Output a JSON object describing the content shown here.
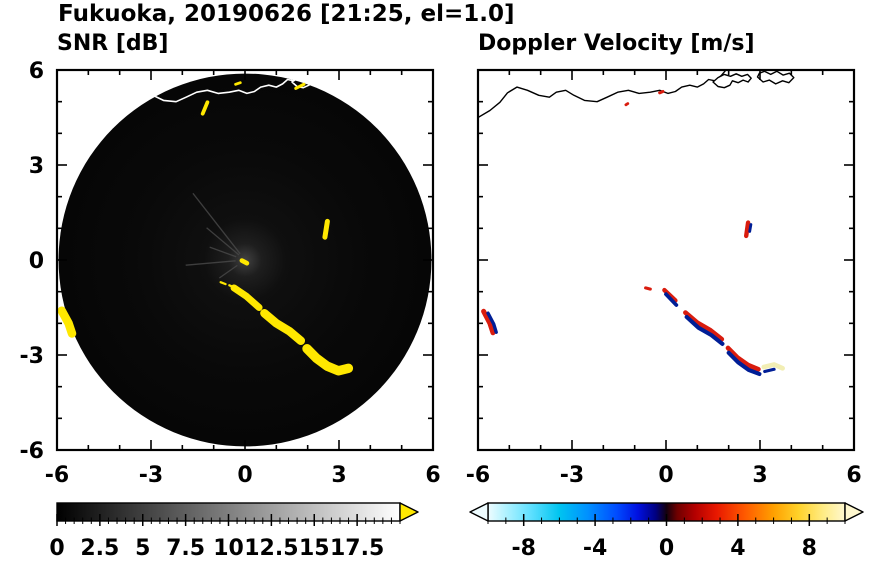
{
  "figure": {
    "title": "Fukuoka, 20190626 [21:25, el=1.0]",
    "background": "#ffffff"
  },
  "coastline": {
    "main": [
      [
        -6.0,
        4.5
      ],
      [
        -5.62,
        4.72
      ],
      [
        -5.3,
        4.98
      ],
      [
        -5.06,
        5.28
      ],
      [
        -4.76,
        5.46
      ],
      [
        -4.42,
        5.36
      ],
      [
        -4.06,
        5.2
      ],
      [
        -3.72,
        5.14
      ],
      [
        -3.5,
        5.3
      ],
      [
        -3.2,
        5.36
      ],
      [
        -2.94,
        5.2
      ],
      [
        -2.6,
        5.04
      ],
      [
        -2.2,
        5.0
      ],
      [
        -1.88,
        5.14
      ],
      [
        -1.54,
        5.3
      ],
      [
        -1.2,
        5.36
      ],
      [
        -0.86,
        5.26
      ],
      [
        -0.5,
        5.3
      ],
      [
        -0.2,
        5.36
      ],
      [
        0.06,
        5.26
      ],
      [
        0.3,
        5.32
      ],
      [
        0.5,
        5.46
      ],
      [
        0.76,
        5.52
      ],
      [
        1.0,
        5.46
      ],
      [
        1.2,
        5.56
      ],
      [
        1.36,
        5.7
      ],
      [
        1.56,
        5.66
      ],
      [
        1.76,
        5.82
      ],
      [
        1.9,
        5.98
      ]
    ],
    "islands": [
      [
        [
          1.5,
          5.62
        ],
        [
          1.66,
          5.48
        ],
        [
          1.86,
          5.44
        ],
        [
          2.04,
          5.52
        ],
        [
          2.12,
          5.66
        ],
        [
          2.3,
          5.6
        ],
        [
          2.46,
          5.68
        ],
        [
          2.62,
          5.62
        ],
        [
          2.72,
          5.74
        ],
        [
          2.6,
          5.86
        ],
        [
          2.42,
          5.8
        ],
        [
          2.24,
          5.88
        ],
        [
          2.06,
          5.8
        ],
        [
          1.86,
          5.86
        ],
        [
          1.66,
          5.76
        ],
        [
          1.5,
          5.62
        ]
      ],
      [
        [
          2.92,
          5.78
        ],
        [
          3.1,
          5.62
        ],
        [
          3.3,
          5.68
        ],
        [
          3.5,
          5.56
        ],
        [
          3.72,
          5.66
        ],
        [
          3.92,
          5.6
        ],
        [
          4.08,
          5.76
        ],
        [
          3.94,
          5.9
        ],
        [
          3.74,
          5.84
        ],
        [
          3.54,
          5.96
        ],
        [
          3.34,
          5.86
        ],
        [
          3.14,
          5.96
        ],
        [
          2.98,
          5.9
        ],
        [
          2.92,
          5.78
        ]
      ]
    ]
  },
  "chart_data": [
    {
      "type": "heatmap",
      "title": "SNR [dB]",
      "xlim": [
        -6,
        6
      ],
      "ylim": [
        -6,
        6
      ],
      "xticks": [
        -6,
        -3,
        0,
        3,
        6
      ],
      "yticks": [
        -6,
        -3,
        0,
        3,
        6
      ],
      "minor_tick_step": 1,
      "show_y_labels": true,
      "radar_disk": {
        "cx": 0,
        "cy": 0,
        "r": 5.95,
        "color": "#070707"
      },
      "spokes": [
        {
          "angle": 128,
          "r1": 0.25,
          "r2": 2.7
        },
        {
          "angle": 140,
          "r1": 0.25,
          "r2": 1.6
        },
        {
          "angle": 160,
          "r1": 0.3,
          "r2": 1.2
        },
        {
          "angle": 185,
          "r1": 0.3,
          "r2": 1.9
        },
        {
          "angle": 215,
          "r1": 0.3,
          "r2": 1.0
        }
      ],
      "coastline_color": "#ffffff",
      "island_fill": "none",
      "echo_color": "#ffe800",
      "echoes": [
        {
          "pts": [
            [
              -0.35,
              -0.88
            ],
            [
              0.05,
              -1.15
            ],
            [
              0.45,
              -1.5
            ]
          ],
          "w": 0.22
        },
        {
          "pts": [
            [
              0.62,
              -1.68
            ],
            [
              1.0,
              -2.0
            ],
            [
              1.42,
              -2.25
            ],
            [
              1.78,
              -2.55
            ]
          ],
          "w": 0.27
        },
        {
          "pts": [
            [
              1.98,
              -2.8
            ],
            [
              2.28,
              -3.1
            ],
            [
              2.62,
              -3.35
            ],
            [
              2.98,
              -3.5
            ],
            [
              3.3,
              -3.42
            ]
          ],
          "w": 0.3
        },
        {
          "pts": [
            [
              -5.85,
              -1.6
            ],
            [
              -5.63,
              -2.0
            ],
            [
              -5.52,
              -2.32
            ]
          ],
          "w": 0.27
        },
        {
          "pts": [
            [
              2.55,
              0.72
            ],
            [
              2.63,
              1.22
            ]
          ],
          "w": 0.16
        },
        {
          "pts": [
            [
              -0.1,
              -0.02
            ],
            [
              0.06,
              -0.1
            ]
          ],
          "w": 0.15
        },
        {
          "pts": [
            [
              -0.78,
              -0.7
            ],
            [
              -0.62,
              -0.76
            ]
          ],
          "w": 0.07
        },
        {
          "pts": [
            [
              -0.5,
              -0.8
            ],
            [
              -0.38,
              -0.85
            ]
          ],
          "w": 0.07
        },
        {
          "pts": [
            [
              -1.35,
              4.62
            ],
            [
              -1.2,
              4.98
            ]
          ],
          "w": 0.12
        },
        {
          "pts": [
            [
              1.62,
              5.42
            ],
            [
              1.88,
              5.55
            ]
          ],
          "w": 0.1
        },
        {
          "pts": [
            [
              -0.3,
              5.55
            ],
            [
              -0.15,
              5.6
            ]
          ],
          "w": 0.09
        }
      ],
      "colorbar": {
        "range": [
          0,
          20
        ],
        "tick_values": [
          0,
          2.5,
          5,
          7.5,
          10,
          12.5,
          15,
          17.5
        ],
        "tick_labels": [
          "0",
          "2.5",
          "5",
          "7.5",
          "10",
          "12.5",
          "15",
          "17.5"
        ],
        "minor_step": 0.5,
        "stops": [
          [
            0,
            "#000000"
          ],
          [
            1,
            "#ffffff"
          ]
        ],
        "over_arrow": "#ffe800"
      }
    },
    {
      "type": "heatmap",
      "title": "Doppler Velocity [m/s]",
      "xlim": [
        -6,
        6
      ],
      "ylim": [
        -6,
        6
      ],
      "xticks": [
        -6,
        -3,
        0,
        3,
        6
      ],
      "yticks": [
        -6,
        -3,
        0,
        3,
        6
      ],
      "minor_tick_step": 1,
      "show_y_labels": false,
      "coastline_color": "#000000",
      "island_fill": "#ffffff",
      "echo_color": "#d91c0e",
      "echoes": [
        {
          "pts": [
            [
              -0.05,
              -0.95
            ],
            [
              0.3,
              -1.28
            ]
          ],
          "w": 0.14,
          "color": "#d91c0e"
        },
        {
          "pts": [
            [
              0.0,
              -1.08
            ],
            [
              0.33,
              -1.42
            ]
          ],
          "w": 0.12,
          "color": "#001e96"
        },
        {
          "pts": [
            [
              -0.65,
              -0.88
            ],
            [
              -0.5,
              -0.92
            ]
          ],
          "w": 0.1,
          "color": "#d91c0e"
        },
        {
          "pts": [
            [
              0.62,
              -1.66
            ],
            [
              1.0,
              -1.98
            ],
            [
              1.42,
              -2.22
            ],
            [
              1.78,
              -2.5
            ]
          ],
          "w": 0.15,
          "color": "#d91c0e"
        },
        {
          "pts": [
            [
              0.66,
              -1.8
            ],
            [
              1.04,
              -2.14
            ],
            [
              1.45,
              -2.37
            ],
            [
              1.8,
              -2.65
            ]
          ],
          "w": 0.13,
          "color": "#001e96"
        },
        {
          "pts": [
            [
              1.98,
              -2.78
            ],
            [
              2.28,
              -3.08
            ],
            [
              2.62,
              -3.32
            ],
            [
              2.95,
              -3.45
            ]
          ],
          "w": 0.15,
          "color": "#d91c0e"
        },
        {
          "pts": [
            [
              2.0,
              -2.93
            ],
            [
              2.3,
              -3.23
            ],
            [
              2.64,
              -3.47
            ],
            [
              2.98,
              -3.6
            ]
          ],
          "w": 0.13,
          "color": "#001e96"
        },
        {
          "pts": [
            [
              3.12,
              -3.38
            ],
            [
              3.45,
              -3.3
            ],
            [
              3.72,
              -3.42
            ]
          ],
          "w": 0.15,
          "color": "#f2eeb4"
        },
        {
          "pts": [
            [
              3.15,
              -3.52
            ],
            [
              3.45,
              -3.45
            ]
          ],
          "w": 0.1,
          "color": "#001e96"
        },
        {
          "pts": [
            [
              -5.82,
              -1.62
            ],
            [
              -5.62,
              -2.0
            ],
            [
              -5.52,
              -2.3
            ]
          ],
          "w": 0.16,
          "color": "#d91c0e"
        },
        {
          "pts": [
            [
              -5.68,
              -1.68
            ],
            [
              -5.5,
              -2.02
            ],
            [
              -5.42,
              -2.28
            ]
          ],
          "w": 0.11,
          "color": "#001e96"
        },
        {
          "pts": [
            [
              2.56,
              0.76
            ],
            [
              2.62,
              1.18
            ]
          ],
          "w": 0.14,
          "color": "#d91c0e"
        },
        {
          "pts": [
            [
              2.67,
              0.9
            ],
            [
              2.71,
              1.12
            ]
          ],
          "w": 0.09,
          "color": "#001e96"
        },
        {
          "pts": [
            [
              -0.2,
              5.28
            ],
            [
              -0.1,
              5.32
            ]
          ],
          "w": 0.1,
          "color": "#d91c0e"
        },
        {
          "pts": [
            [
              -1.28,
              4.9
            ],
            [
              -1.22,
              4.94
            ]
          ],
          "w": 0.09,
          "color": "#d91c0e"
        }
      ],
      "colorbar": {
        "range": [
          -10,
          10
        ],
        "tick_values": [
          -8,
          -4,
          0,
          4,
          8
        ],
        "tick_labels": [
          "-8",
          "-4",
          "0",
          "4",
          "8"
        ],
        "minor_step": 1,
        "stops": [
          [
            0.0,
            "#eefcff"
          ],
          [
            0.05,
            "#b0f2ff"
          ],
          [
            0.12,
            "#5fe0ff"
          ],
          [
            0.2,
            "#00c4f0"
          ],
          [
            0.28,
            "#0090ff"
          ],
          [
            0.36,
            "#004cff"
          ],
          [
            0.42,
            "#0010e0"
          ],
          [
            0.47,
            "#000080"
          ],
          [
            0.5,
            "#14000e"
          ],
          [
            0.53,
            "#6e0000"
          ],
          [
            0.58,
            "#b40000"
          ],
          [
            0.64,
            "#e81800"
          ],
          [
            0.72,
            "#ff5a00"
          ],
          [
            0.8,
            "#ffa000"
          ],
          [
            0.87,
            "#ffd22a"
          ],
          [
            0.94,
            "#ffec86"
          ],
          [
            1.0,
            "#fff8cf"
          ]
        ],
        "under_arrow": "#eefcff",
        "over_arrow": "#fff8cf"
      }
    }
  ]
}
